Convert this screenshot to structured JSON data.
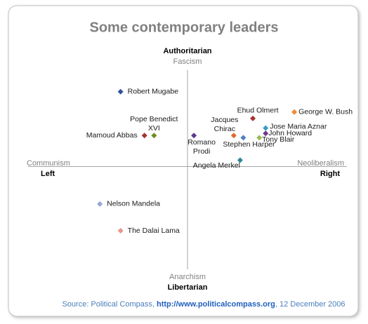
{
  "chart_data": {
    "type": "scatter",
    "title": "Some contemporary leaders",
    "top_label": "Authoritarian",
    "top_sublabel": "Fascism",
    "bottom_label": "Libertarian",
    "bottom_sublabel": "Anarchism",
    "left_label": "Left",
    "left_sublabel": "Communism",
    "right_label": "Right",
    "right_sublabel": "Neoliberalism",
    "source": {
      "prefix": "Source: Political Compass, ",
      "link": "http://www.politicalcompass.org",
      "suffix": ", 12 December 2006"
    },
    "xlim": [
      -10,
      10
    ],
    "ylim": [
      -10,
      10
    ],
    "labels": [
      [
        "Robert Mugabe"
      ],
      [
        "Mamoud Abbas"
      ],
      [
        "Pope Benedict",
        "XVI"
      ],
      [
        "Romano",
        "Prodi"
      ],
      [
        "Jacques",
        "Chirac"
      ],
      [
        "Ehud Olmert"
      ],
      [
        "George W. Bush"
      ],
      [
        "Jose Maria Aznar"
      ],
      [
        "John Howard"
      ],
      [
        "Tony Blair"
      ],
      [
        "Stephen Harper"
      ],
      [
        "Angela Merkel"
      ],
      [
        "Nelson Mandela"
      ],
      [
        "The Dalai Lama"
      ]
    ],
    "x": [
      -4.2,
      -2.7,
      -2.1,
      0.4,
      2.9,
      4.1,
      6.7,
      4.9,
      4.9,
      4.5,
      3.5,
      3.3,
      -5.5,
      -4.2
    ],
    "y": [
      7.0,
      2.9,
      2.9,
      2.9,
      2.9,
      4.5,
      5.1,
      3.6,
      3.1,
      2.7,
      2.7,
      0.6,
      -3.5,
      -6.0
    ],
    "colors": [
      "#2f5597",
      "#a83232",
      "#6b8e23",
      "#5b3a8c",
      "#e06b2c",
      "#a83232",
      "#f28a30",
      "#3b9bc4",
      "#6b3a8c",
      "#9bbb59",
      "#4f81bd",
      "#31859c",
      "#95a8d8",
      "#e8968a"
    ]
  }
}
